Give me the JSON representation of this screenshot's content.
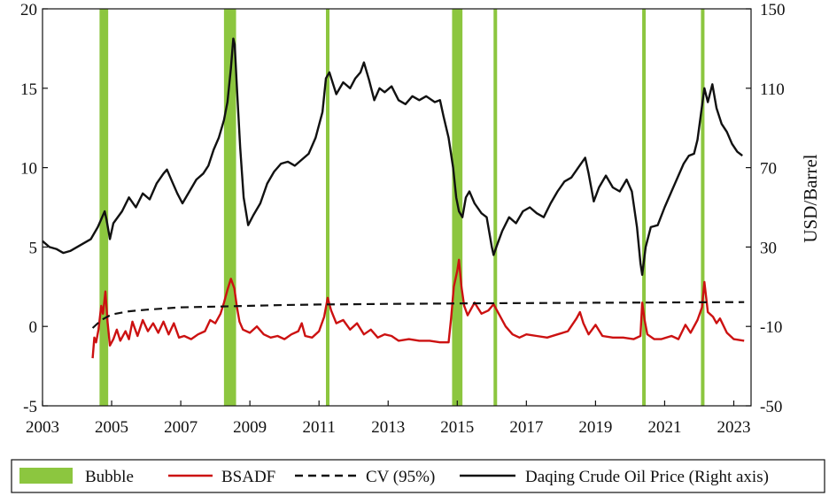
{
  "chart_data": {
    "type": "line",
    "title": "",
    "xlabel": "",
    "ylabel_left": "",
    "ylabel_right": "USD/Barrel",
    "x_range": [
      2003.0,
      2023.5
    ],
    "y_left_range": [
      -5,
      20
    ],
    "y_right_range": [
      -50,
      150
    ],
    "x_ticks": [
      2003,
      2005,
      2007,
      2009,
      2011,
      2013,
      2015,
      2017,
      2019,
      2021,
      2023
    ],
    "x_tick_labels": [
      "2003",
      "2005",
      "2007",
      "2009",
      "2011",
      "2013",
      "2015",
      "2017",
      "2019",
      "2021",
      "2023"
    ],
    "y_left_ticks": [
      -5,
      0,
      5,
      10,
      15,
      20
    ],
    "y_left_tick_labels": [
      "-5",
      "0",
      "5",
      "10",
      "15",
      "20"
    ],
    "y_right_ticks": [
      -50,
      -10,
      30,
      70,
      110,
      150
    ],
    "y_right_tick_labels": [
      "-50",
      "-10",
      "30",
      "70",
      "110",
      "150"
    ],
    "grid": false,
    "legend_position": "bottom",
    "bubbles": [
      {
        "start": 2004.65,
        "end": 2004.9
      },
      {
        "start": 2008.25,
        "end": 2008.6
      },
      {
        "start": 2011.2,
        "end": 2011.3
      },
      {
        "start": 2014.85,
        "end": 2015.15
      },
      {
        "start": 2016.05,
        "end": 2016.1
      },
      {
        "start": 2020.35,
        "end": 2020.4
      },
      {
        "start": 2022.05,
        "end": 2022.15
      }
    ],
    "series": [
      {
        "name": "BSADF",
        "axis": "left",
        "color": "#cc1111",
        "points": [
          [
            2004.45,
            -2.0
          ],
          [
            2004.5,
            -0.7
          ],
          [
            2004.55,
            -1.0
          ],
          [
            2004.62,
            -0.2
          ],
          [
            2004.7,
            1.3
          ],
          [
            2004.75,
            0.8
          ],
          [
            2004.82,
            2.2
          ],
          [
            2004.88,
            0.3
          ],
          [
            2004.95,
            -1.2
          ],
          [
            2005.05,
            -0.8
          ],
          [
            2005.15,
            -0.2
          ],
          [
            2005.25,
            -0.9
          ],
          [
            2005.4,
            -0.3
          ],
          [
            2005.5,
            -0.8
          ],
          [
            2005.6,
            0.3
          ],
          [
            2005.75,
            -0.6
          ],
          [
            2005.9,
            0.4
          ],
          [
            2006.05,
            -0.3
          ],
          [
            2006.2,
            0.2
          ],
          [
            2006.35,
            -0.4
          ],
          [
            2006.5,
            0.3
          ],
          [
            2006.65,
            -0.5
          ],
          [
            2006.8,
            0.2
          ],
          [
            2006.95,
            -0.7
          ],
          [
            2007.1,
            -0.6
          ],
          [
            2007.3,
            -0.8
          ],
          [
            2007.5,
            -0.5
          ],
          [
            2007.7,
            -0.3
          ],
          [
            2007.85,
            0.4
          ],
          [
            2008.0,
            0.2
          ],
          [
            2008.15,
            0.8
          ],
          [
            2008.25,
            1.5
          ],
          [
            2008.35,
            2.3
          ],
          [
            2008.45,
            3.0
          ],
          [
            2008.55,
            2.4
          ],
          [
            2008.62,
            1.3
          ],
          [
            2008.7,
            0.3
          ],
          [
            2008.8,
            -0.2
          ],
          [
            2009.0,
            -0.4
          ],
          [
            2009.2,
            0.0
          ],
          [
            2009.4,
            -0.5
          ],
          [
            2009.6,
            -0.7
          ],
          [
            2009.8,
            -0.6
          ],
          [
            2010.0,
            -0.8
          ],
          [
            2010.2,
            -0.5
          ],
          [
            2010.4,
            -0.3
          ],
          [
            2010.5,
            0.2
          ],
          [
            2010.6,
            -0.6
          ],
          [
            2010.8,
            -0.7
          ],
          [
            2011.0,
            -0.3
          ],
          [
            2011.15,
            0.6
          ],
          [
            2011.25,
            1.8
          ],
          [
            2011.35,
            1.0
          ],
          [
            2011.5,
            0.2
          ],
          [
            2011.7,
            0.4
          ],
          [
            2011.9,
            -0.2
          ],
          [
            2012.1,
            0.2
          ],
          [
            2012.3,
            -0.5
          ],
          [
            2012.5,
            -0.2
          ],
          [
            2012.7,
            -0.7
          ],
          [
            2012.9,
            -0.5
          ],
          [
            2013.1,
            -0.6
          ],
          [
            2013.3,
            -0.9
          ],
          [
            2013.6,
            -0.8
          ],
          [
            2013.9,
            -0.9
          ],
          [
            2014.2,
            -0.9
          ],
          [
            2014.5,
            -1.0
          ],
          [
            2014.75,
            -1.0
          ],
          [
            2014.82,
            0.5
          ],
          [
            2014.9,
            2.5
          ],
          [
            2015.0,
            3.5
          ],
          [
            2015.05,
            4.2
          ],
          [
            2015.12,
            2.5
          ],
          [
            2015.2,
            1.3
          ],
          [
            2015.3,
            0.7
          ],
          [
            2015.5,
            1.5
          ],
          [
            2015.7,
            0.8
          ],
          [
            2015.9,
            1.0
          ],
          [
            2016.05,
            1.4
          ],
          [
            2016.2,
            0.8
          ],
          [
            2016.4,
            0.0
          ],
          [
            2016.6,
            -0.5
          ],
          [
            2016.8,
            -0.7
          ],
          [
            2017.0,
            -0.5
          ],
          [
            2017.3,
            -0.6
          ],
          [
            2017.6,
            -0.7
          ],
          [
            2017.9,
            -0.5
          ],
          [
            2018.2,
            -0.3
          ],
          [
            2018.45,
            0.5
          ],
          [
            2018.55,
            0.9
          ],
          [
            2018.65,
            0.2
          ],
          [
            2018.8,
            -0.5
          ],
          [
            2019.0,
            0.1
          ],
          [
            2019.2,
            -0.6
          ],
          [
            2019.5,
            -0.7
          ],
          [
            2019.8,
            -0.7
          ],
          [
            2020.1,
            -0.8
          ],
          [
            2020.3,
            -0.6
          ],
          [
            2020.35,
            1.5
          ],
          [
            2020.42,
            0.4
          ],
          [
            2020.5,
            -0.5
          ],
          [
            2020.7,
            -0.8
          ],
          [
            2020.9,
            -0.8
          ],
          [
            2021.2,
            -0.6
          ],
          [
            2021.4,
            -0.8
          ],
          [
            2021.6,
            0.1
          ],
          [
            2021.75,
            -0.4
          ],
          [
            2021.95,
            0.4
          ],
          [
            2022.08,
            1.2
          ],
          [
            2022.15,
            2.8
          ],
          [
            2022.25,
            0.9
          ],
          [
            2022.4,
            0.6
          ],
          [
            2022.5,
            0.2
          ],
          [
            2022.6,
            0.5
          ],
          [
            2022.8,
            -0.4
          ],
          [
            2023.0,
            -0.8
          ],
          [
            2023.3,
            -0.9
          ]
        ]
      },
      {
        "name": "CV (95%)",
        "axis": "left",
        "color": "#111111",
        "points": [
          [
            2004.45,
            -0.1
          ],
          [
            2004.7,
            0.4
          ],
          [
            2005.0,
            0.75
          ],
          [
            2005.5,
            0.95
          ],
          [
            2006.0,
            1.05
          ],
          [
            2007.0,
            1.2
          ],
          [
            2008.0,
            1.25
          ],
          [
            2009.0,
            1.3
          ],
          [
            2010.0,
            1.35
          ],
          [
            2011.0,
            1.38
          ],
          [
            2012.0,
            1.4
          ],
          [
            2013.0,
            1.42
          ],
          [
            2014.0,
            1.43
          ],
          [
            2015.0,
            1.45
          ],
          [
            2016.0,
            1.46
          ],
          [
            2017.0,
            1.47
          ],
          [
            2018.0,
            1.48
          ],
          [
            2019.0,
            1.49
          ],
          [
            2020.0,
            1.5
          ],
          [
            2021.0,
            1.51
          ],
          [
            2022.0,
            1.52
          ],
          [
            2023.3,
            1.53
          ]
        ]
      },
      {
        "name": "Daqing Crude Oil Price (Right axis)",
        "axis": "right",
        "color": "#111111",
        "points": [
          [
            2003.0,
            33
          ],
          [
            2003.2,
            30
          ],
          [
            2003.4,
            29
          ],
          [
            2003.6,
            27
          ],
          [
            2003.8,
            28
          ],
          [
            2004.0,
            30
          ],
          [
            2004.2,
            32
          ],
          [
            2004.4,
            34
          ],
          [
            2004.6,
            40
          ],
          [
            2004.8,
            48
          ],
          [
            2004.85,
            44
          ],
          [
            2004.95,
            34
          ],
          [
            2005.05,
            42
          ],
          [
            2005.3,
            48
          ],
          [
            2005.5,
            55
          ],
          [
            2005.7,
            50
          ],
          [
            2005.9,
            57
          ],
          [
            2006.1,
            54
          ],
          [
            2006.3,
            62
          ],
          [
            2006.5,
            67
          ],
          [
            2006.6,
            69
          ],
          [
            2006.75,
            63
          ],
          [
            2006.9,
            57
          ],
          [
            2007.05,
            52
          ],
          [
            2007.25,
            58
          ],
          [
            2007.45,
            64
          ],
          [
            2007.65,
            67
          ],
          [
            2007.8,
            71
          ],
          [
            2007.95,
            79
          ],
          [
            2008.1,
            85
          ],
          [
            2008.25,
            94
          ],
          [
            2008.35,
            103
          ],
          [
            2008.45,
            120
          ],
          [
            2008.52,
            135
          ],
          [
            2008.56,
            132
          ],
          [
            2008.62,
            112
          ],
          [
            2008.72,
            80
          ],
          [
            2008.82,
            55
          ],
          [
            2008.95,
            41
          ],
          [
            2009.1,
            46
          ],
          [
            2009.3,
            52
          ],
          [
            2009.5,
            62
          ],
          [
            2009.7,
            68
          ],
          [
            2009.9,
            72
          ],
          [
            2010.1,
            73
          ],
          [
            2010.3,
            71
          ],
          [
            2010.5,
            74
          ],
          [
            2010.7,
            77
          ],
          [
            2010.9,
            85
          ],
          [
            2011.1,
            98
          ],
          [
            2011.2,
            115
          ],
          [
            2011.3,
            118
          ],
          [
            2011.5,
            107
          ],
          [
            2011.7,
            113
          ],
          [
            2011.9,
            110
          ],
          [
            2012.05,
            115
          ],
          [
            2012.2,
            118
          ],
          [
            2012.3,
            123
          ],
          [
            2012.45,
            114
          ],
          [
            2012.6,
            104
          ],
          [
            2012.75,
            110
          ],
          [
            2012.9,
            108
          ],
          [
            2013.1,
            111
          ],
          [
            2013.3,
            104
          ],
          [
            2013.5,
            102
          ],
          [
            2013.7,
            106
          ],
          [
            2013.9,
            104
          ],
          [
            2014.1,
            106
          ],
          [
            2014.35,
            103
          ],
          [
            2014.5,
            104
          ],
          [
            2014.6,
            96
          ],
          [
            2014.75,
            85
          ],
          [
            2014.88,
            70
          ],
          [
            2014.97,
            55
          ],
          [
            2015.05,
            48
          ],
          [
            2015.15,
            45
          ],
          [
            2015.25,
            55
          ],
          [
            2015.35,
            58
          ],
          [
            2015.5,
            52
          ],
          [
            2015.7,
            47
          ],
          [
            2015.85,
            45
          ],
          [
            2016.0,
            30
          ],
          [
            2016.05,
            26
          ],
          [
            2016.15,
            31
          ],
          [
            2016.3,
            38
          ],
          [
            2016.5,
            45
          ],
          [
            2016.7,
            42
          ],
          [
            2016.9,
            48
          ],
          [
            2017.1,
            50
          ],
          [
            2017.3,
            47
          ],
          [
            2017.5,
            45
          ],
          [
            2017.7,
            52
          ],
          [
            2017.9,
            58
          ],
          [
            2018.1,
            63
          ],
          [
            2018.3,
            65
          ],
          [
            2018.5,
            70
          ],
          [
            2018.7,
            75
          ],
          [
            2018.8,
            67
          ],
          [
            2018.95,
            53
          ],
          [
            2019.1,
            60
          ],
          [
            2019.3,
            66
          ],
          [
            2019.5,
            60
          ],
          [
            2019.7,
            58
          ],
          [
            2019.9,
            64
          ],
          [
            2020.05,
            58
          ],
          [
            2020.2,
            40
          ],
          [
            2020.3,
            22
          ],
          [
            2020.35,
            16
          ],
          [
            2020.45,
            30
          ],
          [
            2020.6,
            40
          ],
          [
            2020.8,
            41
          ],
          [
            2021.0,
            50
          ],
          [
            2021.2,
            58
          ],
          [
            2021.4,
            66
          ],
          [
            2021.55,
            72
          ],
          [
            2021.7,
            76
          ],
          [
            2021.85,
            77
          ],
          [
            2021.95,
            84
          ],
          [
            2022.05,
            97
          ],
          [
            2022.15,
            110
          ],
          [
            2022.25,
            103
          ],
          [
            2022.38,
            112
          ],
          [
            2022.5,
            100
          ],
          [
            2022.65,
            92
          ],
          [
            2022.8,
            88
          ],
          [
            2022.95,
            82
          ],
          [
            2023.1,
            78
          ],
          [
            2023.25,
            76
          ]
        ]
      }
    ],
    "legend": [
      {
        "label": "Bubble",
        "type": "bar",
        "color": "#8cc63f"
      },
      {
        "label": "BSADF",
        "type": "line",
        "color": "#cc1111"
      },
      {
        "label": "CV (95%)",
        "type": "dashed",
        "color": "#111111"
      },
      {
        "label": "Daqing Crude Oil Price (Right axis)",
        "type": "line",
        "color": "#111111"
      }
    ]
  }
}
